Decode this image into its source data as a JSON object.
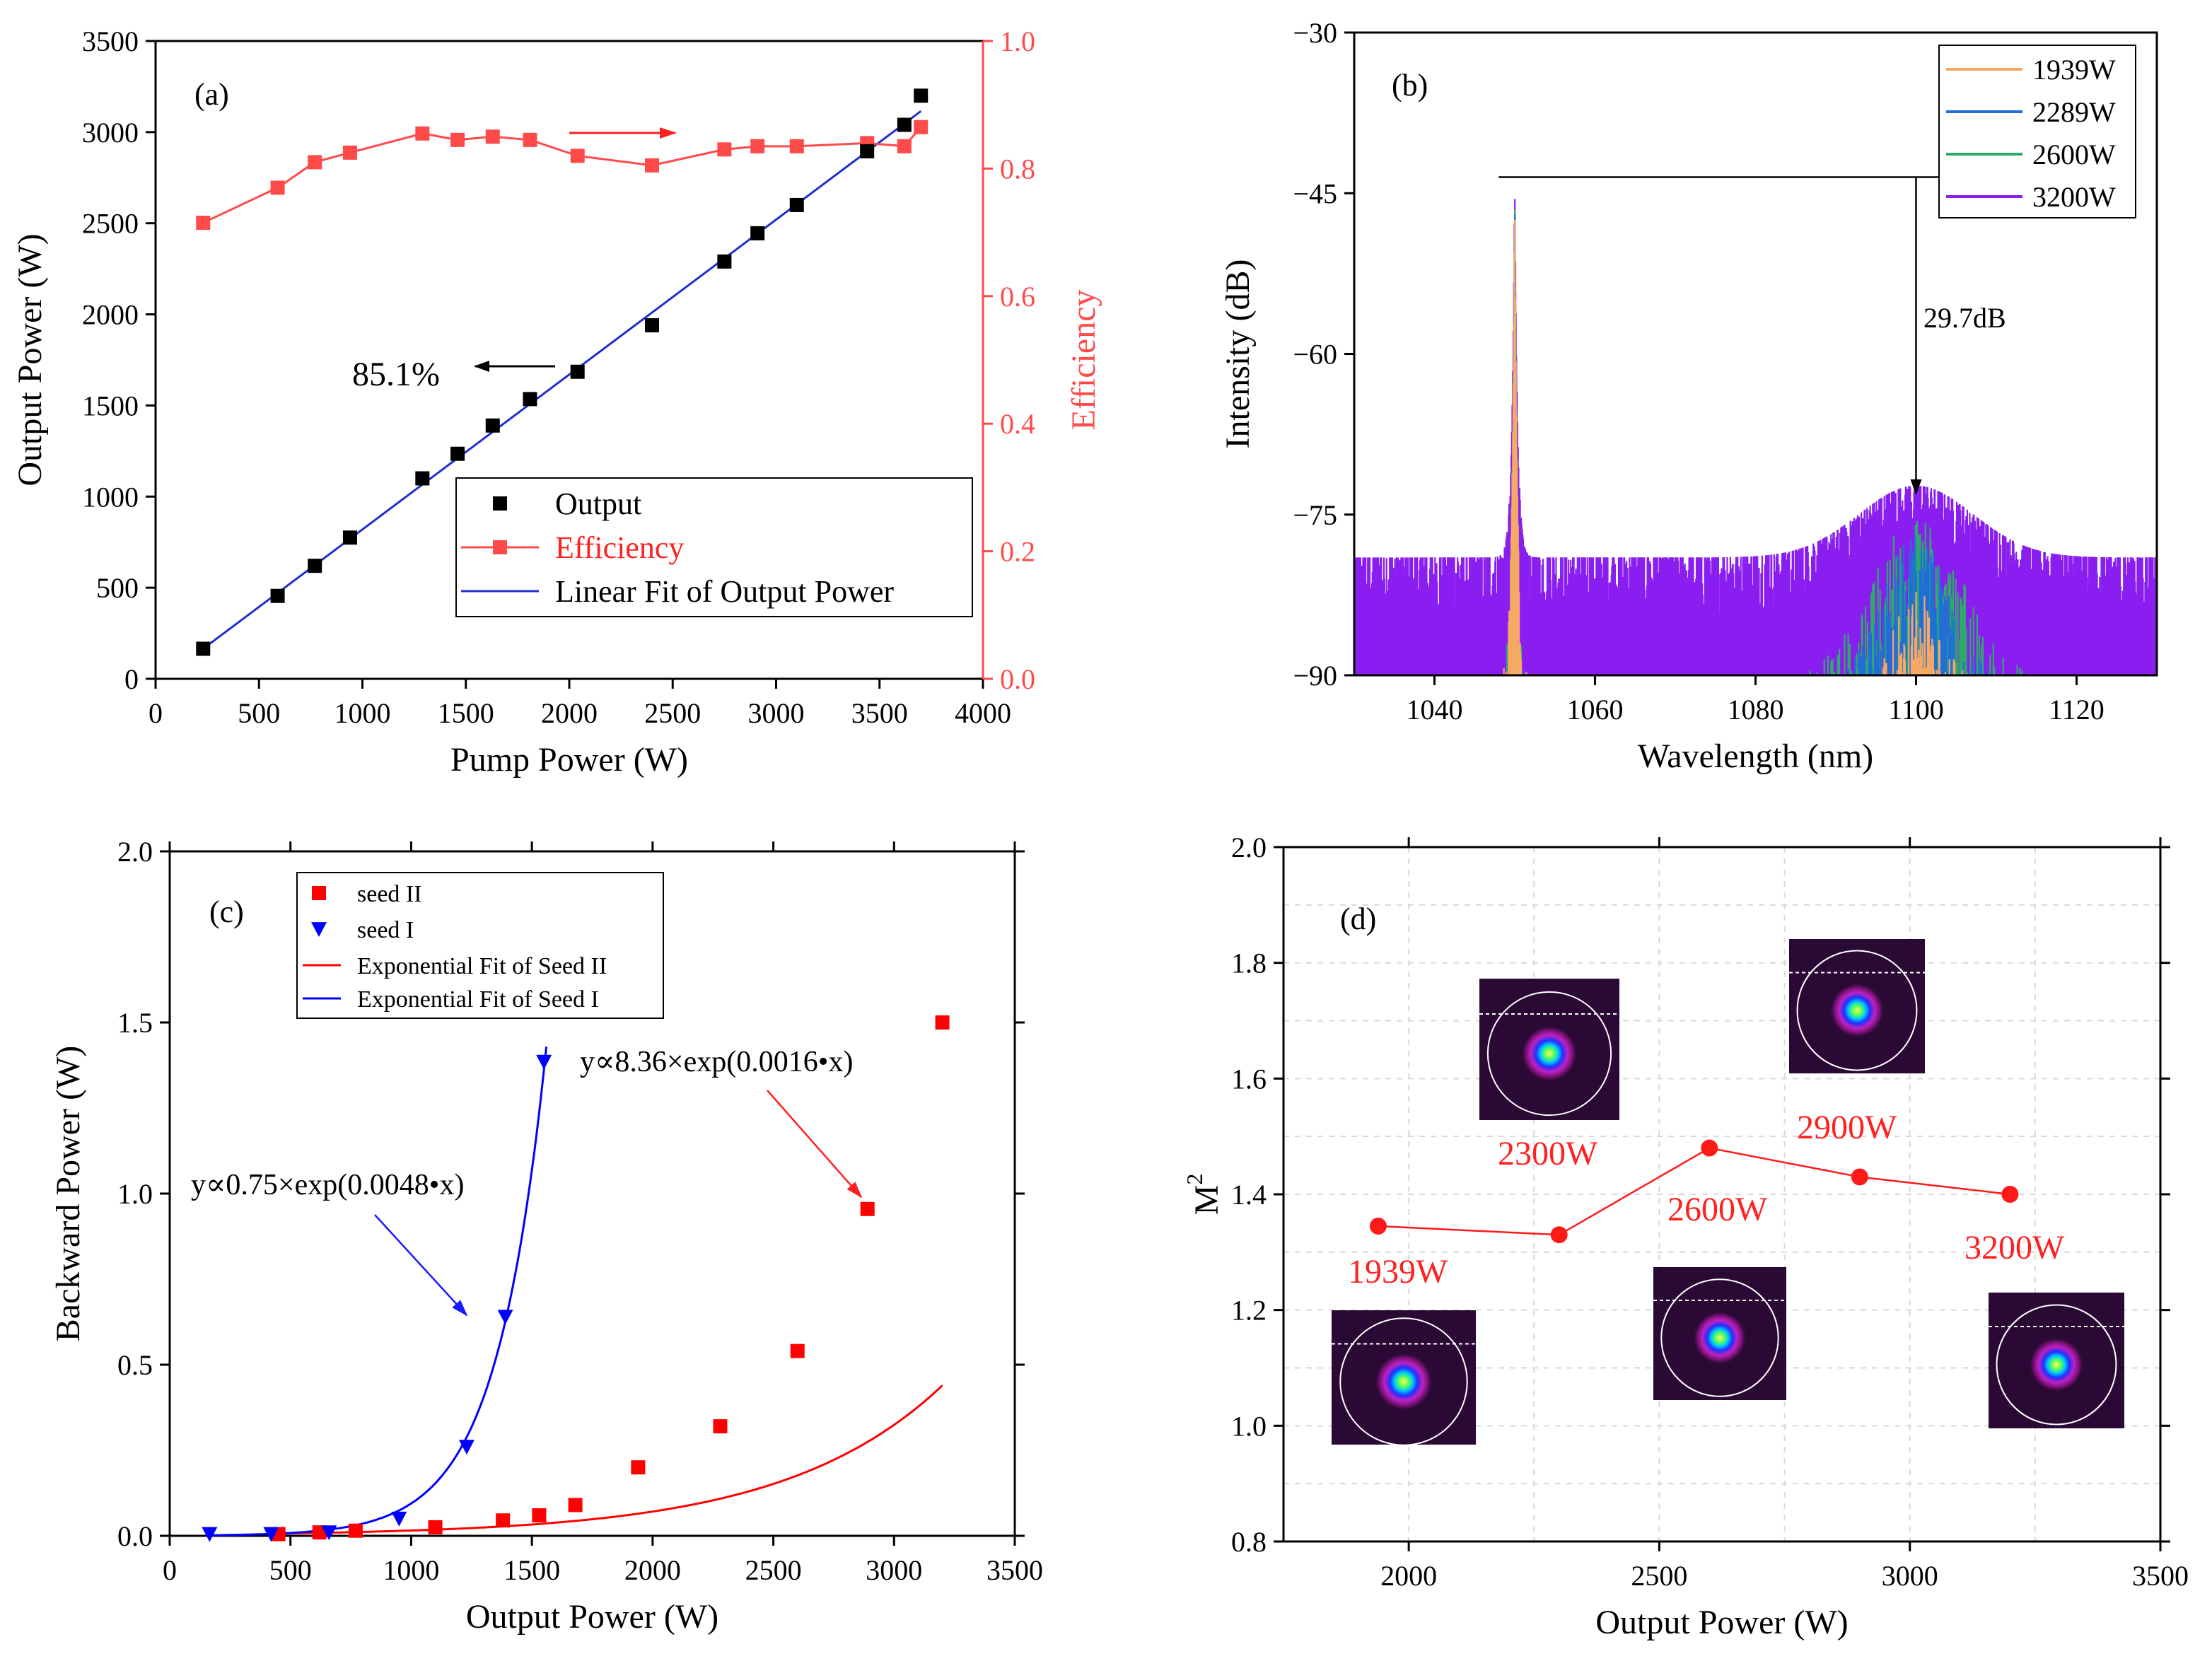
{
  "chart_data": [
    {
      "panel": "(a)",
      "type": "scatter",
      "xlabel": "Pump Power (W)",
      "ylabel": "Output Power (W)",
      "y2label": "Efficiency",
      "xlim": [
        0,
        4000
      ],
      "ylim": [
        0,
        3500
      ],
      "y2lim": [
        0,
        1.0
      ],
      "xticks": [
        0,
        500,
        1000,
        1500,
        2000,
        2500,
        3000,
        3500,
        4000
      ],
      "yticks": [
        0,
        500,
        1000,
        1500,
        2000,
        2500,
        3000,
        3500
      ],
      "y2ticks": [
        0.0,
        0.2,
        0.4,
        0.6,
        0.8,
        1.0
      ],
      "x": [
        230,
        590,
        770,
        940,
        1290,
        1460,
        1630,
        1810,
        2040,
        2400,
        2750,
        2910,
        3100,
        3440,
        3620,
        3700
      ],
      "series": [
        {
          "name": "Output",
          "color": "#000000",
          "marker": "square",
          "values": [
            165,
            455,
            620,
            775,
            1100,
            1235,
            1390,
            1535,
            1685,
            1940,
            2290,
            2445,
            2600,
            2895,
            3040,
            3200
          ]
        },
        {
          "name": "Efficiency",
          "color": "#ff4a4a",
          "marker": "square",
          "axis": "right",
          "values": [
            0.715,
            0.77,
            0.81,
            0.825,
            0.855,
            0.845,
            0.85,
            0.845,
            0.82,
            0.805,
            0.83,
            0.835,
            0.835,
            0.84,
            0.835,
            0.865
          ]
        },
        {
          "name": "Linear Fit of Output Power",
          "color": "#1f2fd0",
          "type": "line",
          "x": [
            230,
            3700
          ],
          "values": [
            165,
            3115
          ]
        }
      ],
      "legend": [
        "Output",
        "Efficiency",
        "Linear Fit of Output Power"
      ],
      "annotations": [
        "85.1%"
      ]
    },
    {
      "panel": "(b)",
      "type": "line",
      "xlabel": "Wavelength (nm)",
      "ylabel": "Intensity (dB)",
      "xlim": [
        1030,
        1130
      ],
      "ylim": [
        -90,
        -30
      ],
      "xticks": [
        1040,
        1060,
        1080,
        1100,
        1120
      ],
      "yticks": [
        -90,
        -75,
        -60,
        -45,
        -30
      ],
      "series": [
        {
          "name": "1939W",
          "color": "#f6a865",
          "floor": -90,
          "peak_x": 1050,
          "peak": -45,
          "bump_center": 1100,
          "bump_peak": -81,
          "bump_width": 3.5
        },
        {
          "name": "2289W",
          "color": "#1f6fd8",
          "floor": -90,
          "peak_x": 1050,
          "peak": -44.5,
          "bump_center": 1100,
          "bump_peak": -76.5,
          "bump_width": 5.5
        },
        {
          "name": "2600W",
          "color": "#2eaa6a",
          "floor": -90,
          "peak_x": 1050,
          "peak": -44,
          "bump_center": 1100,
          "bump_peak": -75,
          "bump_width": 8
        },
        {
          "name": "3200W",
          "color": "#8a1ef0",
          "floor": -80,
          "peak_x": 1050,
          "peak": -43.5,
          "bump_center": 1100,
          "bump_peak": -73.3,
          "bump_width": 10
        }
      ],
      "annotations": [
        "29.7dB"
      ]
    },
    {
      "panel": "(c)",
      "type": "scatter",
      "xlabel": "Output Power (W)",
      "ylabel": "Backward Power (W)",
      "xlim": [
        0,
        3500
      ],
      "ylim": [
        0,
        2.0
      ],
      "xticks": [
        0,
        500,
        1000,
        1500,
        2000,
        2500,
        3000,
        3500
      ],
      "yticks": [
        0.0,
        0.5,
        1.0,
        1.5,
        2.0
      ],
      "series": [
        {
          "name": "seed II",
          "color": "#ff0000",
          "marker": "square",
          "x": [
            450,
            620,
            770,
            1100,
            1380,
            1530,
            1680,
            1940,
            2280,
            2600,
            2890,
            3200
          ],
          "values": [
            0.005,
            0.01,
            0.015,
            0.025,
            0.045,
            0.06,
            0.09,
            0.2,
            0.32,
            0.54,
            0.955,
            1.5
          ]
        },
        {
          "name": "seed I",
          "color": "#0000ff",
          "marker": "triangle-down",
          "x": [
            165,
            420,
            660,
            950,
            1230,
            1390,
            1550
          ],
          "values": [
            0.005,
            0.005,
            0.01,
            0.05,
            0.26,
            0.64,
            1.385
          ]
        },
        {
          "name": "Exponential Fit of Seed II",
          "color": "#ff0000",
          "type": "line",
          "fit_a": 0.0111,
          "fit_b": 0.00152,
          "fit_x0": 780,
          "xrange": [
            400,
            3200
          ]
        },
        {
          "name": "Exponential Fit of Seed I",
          "color": "#0000ff",
          "type": "line",
          "fit_a": 0.00074,
          "fit_b": 0.00485,
          "fit_x0": 0,
          "xrange": [
            150,
            1560
          ]
        }
      ],
      "legend": [
        "seed II",
        "seed I",
        "Exponential Fit of Seed II",
        "Exponential Fit of Seed I"
      ],
      "annotations": [
        "y∝8.36×exp(0.0016•x)",
        "y∝0.75×exp(0.0048•x)"
      ]
    },
    {
      "panel": "(d)",
      "type": "line",
      "xlabel": "Output Power (W)",
      "ylabel": "M²",
      "xlim": [
        1750,
        3500
      ],
      "ylim": [
        0.8,
        2.0
      ],
      "xticks": [
        2000,
        2500,
        3000,
        3500
      ],
      "yticks": [
        0.8,
        1.0,
        1.2,
        1.4,
        1.6,
        1.8,
        2.0
      ],
      "x": [
        1939,
        2300,
        2600,
        2900,
        3200
      ],
      "values": [
        1.345,
        1.33,
        1.48,
        1.43,
        1.4
      ],
      "color": "#ff1a1a",
      "labels": [
        "1939W",
        "2300W",
        "2600W",
        "2900W",
        "3200W"
      ]
    }
  ]
}
